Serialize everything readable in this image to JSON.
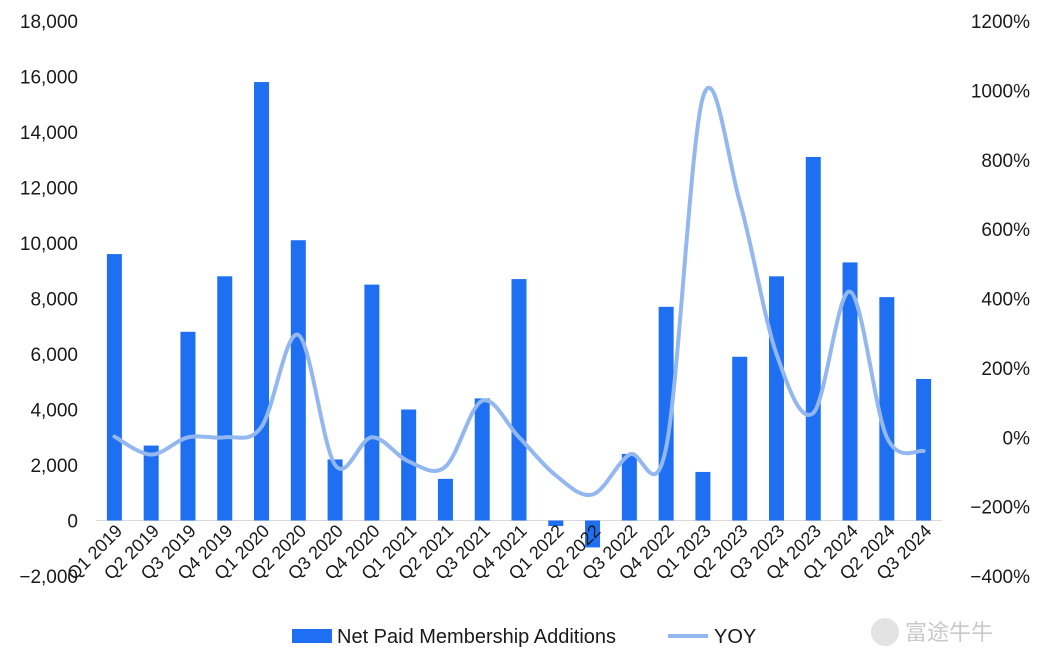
{
  "chart_data": {
    "type": "bar",
    "categories": [
      "Q1 2019",
      "Q2 2019",
      "Q3 2019",
      "Q4 2019",
      "Q1 2020",
      "Q2 2020",
      "Q3 2020",
      "Q4 2020",
      "Q1 2021",
      "Q2 2021",
      "Q3 2021",
      "Q4 2021",
      "Q1 2022",
      "Q2 2022",
      "Q3 2022",
      "Q4 2022",
      "Q1 2023",
      "Q2 2023",
      "Q3 2023",
      "Q4 2023",
      "Q1 2024",
      "Q2 2024",
      "Q3 2024"
    ],
    "series": [
      {
        "name": "Net Paid Membership Additions",
        "type": "bar",
        "axis": "left",
        "color": "#1f6ff2",
        "values": [
          9600,
          2700,
          6800,
          8800,
          15800,
          10100,
          2200,
          8500,
          4000,
          1500,
          4400,
          8700,
          -200,
          -970,
          2400,
          7700,
          1750,
          5900,
          8800,
          13100,
          9300,
          8050,
          5100
        ]
      },
      {
        "name": "YOY",
        "type": "line",
        "axis": "right",
        "color": "#93b8f0",
        "values": [
          0.02,
          -0.5,
          0.0,
          0.0,
          0.3,
          2.95,
          -0.8,
          0.0,
          -0.7,
          -0.85,
          1.05,
          0.0,
          -1.1,
          -1.65,
          -0.5,
          -0.3,
          9.8,
          6.8,
          2.4,
          0.7,
          4.2,
          0.0,
          -0.4
        ]
      }
    ],
    "y_left": {
      "min": -2000,
      "max": 18000,
      "ticks": [
        "18,000",
        "16,000",
        "14,000",
        "12,000",
        "10,000",
        "8,000",
        "6,000",
        "4,000",
        "2,000",
        "0",
        "−2,000"
      ]
    },
    "y_right": {
      "min": -4,
      "max": 12,
      "ticks": [
        "1200%",
        "1000%",
        "800%",
        "600%",
        "400%",
        "200%",
        "0%",
        "−200%",
        "−400%"
      ]
    },
    "legend": {
      "position": "bottom-center"
    },
    "grid": false
  },
  "watermark": "富途牛牛"
}
